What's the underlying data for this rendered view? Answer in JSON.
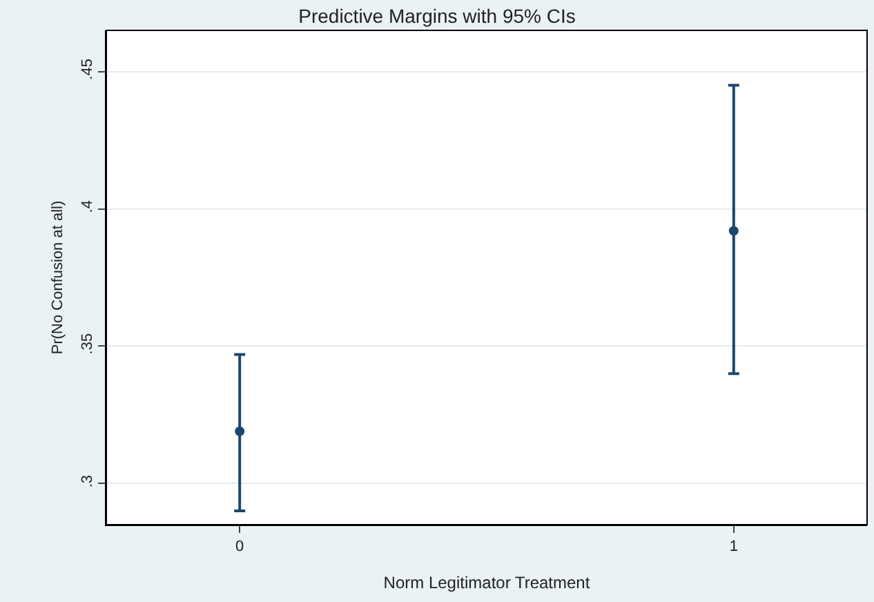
{
  "chart_data": {
    "type": "scatter",
    "title": "Predictive Margins with 95% CIs",
    "xlabel": "Norm Legitimator Treatment",
    "ylabel": "Pr(No Confusion at all)",
    "x": [
      0,
      1
    ],
    "series": [
      {
        "color": "#1a476f",
        "values": [
          0.319,
          0.392
        ],
        "errors": [
          [
            0.29,
            0.347
          ],
          [
            0.34,
            0.445
          ]
        ]
      }
    ],
    "xlim": [
      -0.27,
      1.27
    ],
    "xticks": [
      0,
      1
    ],
    "ylim": [
      0.285,
      0.465
    ],
    "yticks": [
      {
        "value": 0.3,
        "label": ".3"
      },
      {
        "value": 0.35,
        "label": ".35"
      },
      {
        "value": 0.4,
        "label": ".4"
      },
      {
        "value": 0.45,
        "label": ".45"
      }
    ],
    "grid": "y",
    "marker": "circle"
  }
}
